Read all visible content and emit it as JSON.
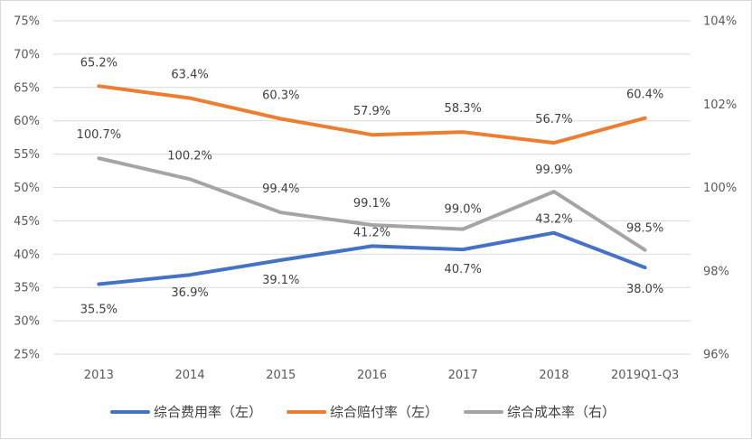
{
  "chart_data": {
    "type": "line",
    "title": "",
    "categories": [
      "2013",
      "2014",
      "2015",
      "2016",
      "2017",
      "2018",
      "2019Q1-Q3"
    ],
    "y_left": {
      "ylim": [
        25,
        75
      ],
      "ticks": [
        "25%",
        "30%",
        "35%",
        "40%",
        "45%",
        "50%",
        "55%",
        "60%",
        "65%",
        "70%",
        "75%"
      ]
    },
    "y_right": {
      "ylim": [
        96,
        104
      ],
      "ticks": [
        "96%",
        "98%",
        "100%",
        "102%",
        "104%"
      ]
    },
    "grid": true,
    "legend_position": "bottom",
    "series": [
      {
        "name": "综合费用率（左）",
        "axis": "left",
        "color": "#4472c4",
        "values": [
          35.5,
          36.9,
          39.1,
          41.2,
          40.7,
          43.2,
          38.0
        ],
        "labels": [
          "35.5%",
          "36.9%",
          "39.1%",
          "41.2%",
          "40.7%",
          "43.2%",
          "38.0%"
        ]
      },
      {
        "name": "综合赔付率（左）",
        "axis": "left",
        "color": "#ed7d31",
        "values": [
          65.2,
          63.4,
          60.3,
          57.9,
          58.3,
          56.7,
          60.4
        ],
        "labels": [
          "65.2%",
          "63.4%",
          "60.3%",
          "57.9%",
          "58.3%",
          "56.7%",
          "60.4%"
        ]
      },
      {
        "name": "综合成本率（右）",
        "axis": "right",
        "color": "#a5a5a5",
        "values": [
          100.7,
          100.2,
          99.4,
          99.1,
          99.0,
          99.9,
          98.5
        ],
        "labels": [
          "100.7%",
          "100.2%",
          "99.4%",
          "99.1%",
          "99.0%",
          "99.9%",
          "98.5%"
        ]
      }
    ]
  }
}
